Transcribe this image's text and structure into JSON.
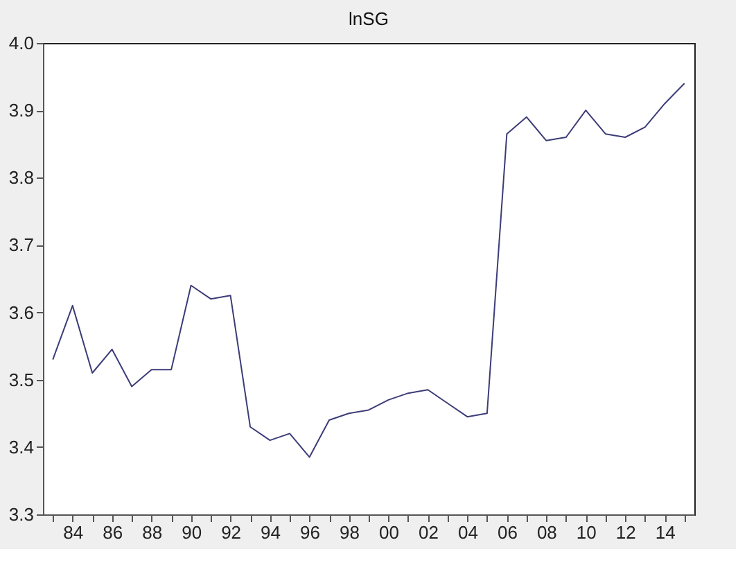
{
  "chart_data": {
    "type": "line",
    "title": "lnSG",
    "x": [
      1983,
      1984,
      1985,
      1986,
      1987,
      1988,
      1989,
      1990,
      1991,
      1992,
      1993,
      1994,
      1995,
      1996,
      1997,
      1998,
      1999,
      2000,
      2001,
      2002,
      2003,
      2004,
      2005,
      2006,
      2007,
      2008,
      2009,
      2010,
      2011,
      2012,
      2013,
      2014,
      2015
    ],
    "series": [
      {
        "color": "#3c3c78",
        "values": [
          3.53,
          3.61,
          3.51,
          3.545,
          3.49,
          3.515,
          3.515,
          3.64,
          3.62,
          3.625,
          3.43,
          3.41,
          3.42,
          3.385,
          3.44,
          3.45,
          3.455,
          3.47,
          3.48,
          3.485,
          3.465,
          3.445,
          3.45,
          3.865,
          3.89,
          3.855,
          3.86,
          3.9,
          3.865,
          3.86,
          3.875,
          3.91,
          3.94
        ]
      }
    ],
    "xlim": [
      1982.5,
      2015.5
    ],
    "xticks": [
      {
        "value": 1983,
        "label": null
      },
      {
        "value": 1984,
        "label": "84"
      },
      {
        "value": 1985,
        "label": null
      },
      {
        "value": 1986,
        "label": "86"
      },
      {
        "value": 1987,
        "label": null
      },
      {
        "value": 1988,
        "label": "88"
      },
      {
        "value": 1989,
        "label": null
      },
      {
        "value": 1990,
        "label": "90"
      },
      {
        "value": 1991,
        "label": null
      },
      {
        "value": 1992,
        "label": "92"
      },
      {
        "value": 1993,
        "label": null
      },
      {
        "value": 1994,
        "label": "94"
      },
      {
        "value": 1995,
        "label": null
      },
      {
        "value": 1996,
        "label": "96"
      },
      {
        "value": 1997,
        "label": null
      },
      {
        "value": 1998,
        "label": "98"
      },
      {
        "value": 1999,
        "label": null
      },
      {
        "value": 2000,
        "label": "00"
      },
      {
        "value": 2001,
        "label": null
      },
      {
        "value": 2002,
        "label": "02"
      },
      {
        "value": 2003,
        "label": null
      },
      {
        "value": 2004,
        "label": "04"
      },
      {
        "value": 2005,
        "label": null
      },
      {
        "value": 2006,
        "label": "06"
      },
      {
        "value": 2007,
        "label": null
      },
      {
        "value": 2008,
        "label": "08"
      },
      {
        "value": 2009,
        "label": null
      },
      {
        "value": 2010,
        "label": "10"
      },
      {
        "value": 2011,
        "label": null
      },
      {
        "value": 2012,
        "label": "12"
      },
      {
        "value": 2013,
        "label": null
      },
      {
        "value": 2014,
        "label": "14"
      },
      {
        "value": 2015,
        "label": null
      }
    ],
    "ylim": [
      3.3,
      4.0
    ],
    "yticks": [
      {
        "value": 3.3,
        "label": "3.3"
      },
      {
        "value": 3.4,
        "label": "3.4"
      },
      {
        "value": 3.5,
        "label": "3.5"
      },
      {
        "value": 3.6,
        "label": "3.6"
      },
      {
        "value": 3.7,
        "label": "3.7"
      },
      {
        "value": 3.8,
        "label": "3.8"
      },
      {
        "value": 3.9,
        "label": "3.9"
      },
      {
        "value": 4.0,
        "label": "4.0"
      }
    ],
    "grid": false,
    "line_style": "solid",
    "marker": "none"
  }
}
